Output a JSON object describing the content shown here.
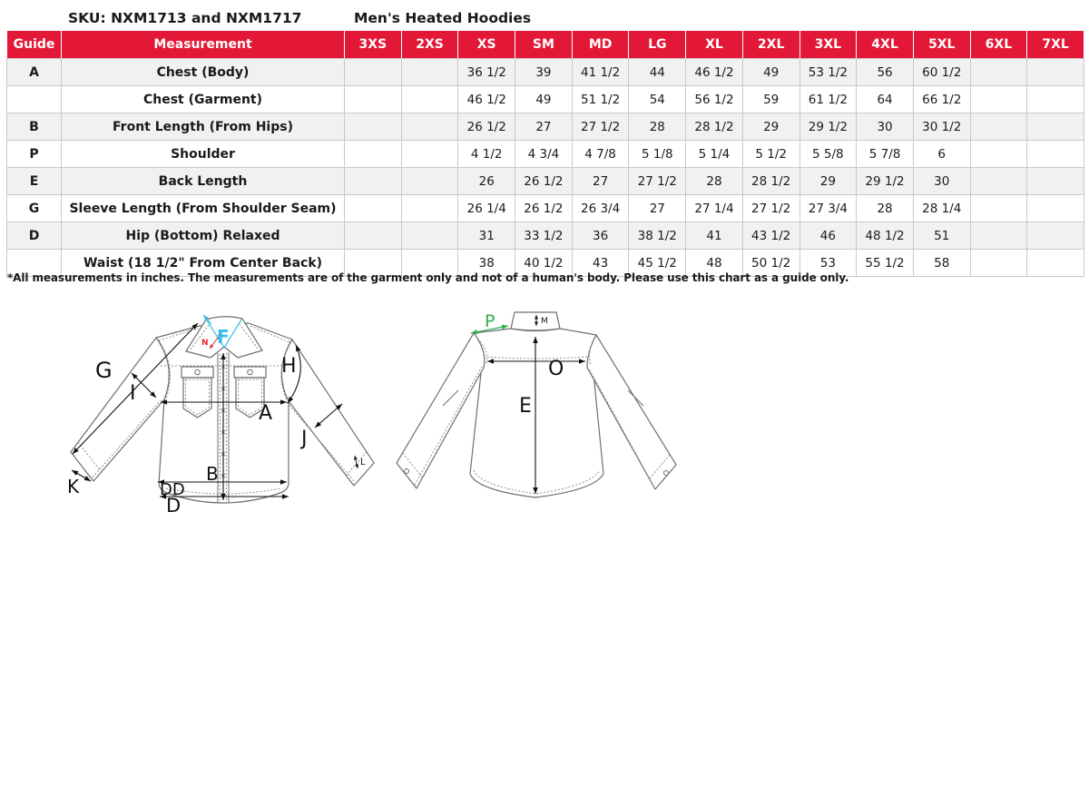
{
  "header": {
    "sku_title": "SKU: NXM1713 and NXM1717",
    "product_title": "Men's Heated Hoodies"
  },
  "table": {
    "columns": [
      "Guide",
      "Measurement",
      "3XS",
      "2XS",
      "XS",
      "SM",
      "MD",
      "LG",
      "XL",
      "2XL",
      "3XL",
      "4XL",
      "5XL",
      "6XL",
      "7XL"
    ],
    "rows": [
      {
        "guide": "A",
        "measurement": "Chest (Body)",
        "values": [
          "",
          "",
          "36 1/2",
          "39",
          "41 1/2",
          "44",
          "46 1/2",
          "49",
          "53 1/2",
          "56",
          "60 1/2",
          "",
          ""
        ]
      },
      {
        "guide": "",
        "measurement": "Chest (Garment)",
        "values": [
          "",
          "",
          "46 1/2",
          "49",
          "51 1/2",
          "54",
          "56 1/2",
          "59",
          "61 1/2",
          "64",
          "66 1/2",
          "",
          ""
        ]
      },
      {
        "guide": "B",
        "measurement": "Front Length (From Hips)",
        "values": [
          "",
          "",
          "26 1/2",
          "27",
          "27 1/2",
          "28",
          "28 1/2",
          "29",
          "29 1/2",
          "30",
          "30 1/2",
          "",
          ""
        ]
      },
      {
        "guide": "P",
        "measurement": "Shoulder",
        "values": [
          "",
          "",
          "4 1/2",
          "4 3/4",
          "4 7/8",
          "5 1/8",
          "5 1/4",
          "5 1/2",
          "5 5/8",
          "5 7/8",
          "6",
          "",
          ""
        ]
      },
      {
        "guide": "E",
        "measurement": "Back Length",
        "values": [
          "",
          "",
          "26",
          "26 1/2",
          "27",
          "27 1/2",
          "28",
          "28 1/2",
          "29",
          "29 1/2",
          "30",
          "",
          ""
        ]
      },
      {
        "guide": "G",
        "measurement": "Sleeve Length (From Shoulder Seam)",
        "values": [
          "",
          "",
          "26 1/4",
          "26 1/2",
          "26 3/4",
          "27",
          "27 1/4",
          "27 1/2",
          "27 3/4",
          "28",
          "28 1/4",
          "",
          ""
        ]
      },
      {
        "guide": "D",
        "measurement": "Hip (Bottom) Relaxed",
        "values": [
          "",
          "",
          "31",
          "33 1/2",
          "36",
          "38 1/2",
          "41",
          "43 1/2",
          "46",
          "48 1/2",
          "51",
          "",
          ""
        ]
      },
      {
        "guide": "",
        "measurement": "Waist (18 1/2\" From Center Back)",
        "values": [
          "",
          "",
          "38",
          "40 1/2",
          "43",
          "45 1/2",
          "48",
          "50 1/2",
          "53",
          "55 1/2",
          "58",
          "",
          ""
        ]
      }
    ]
  },
  "footnote": "*All measurements in inches. The measurements are of the garment only and not of a human's body. Please use this chart as a guide only.",
  "diagram": {
    "front": {
      "f": "F",
      "n": "N",
      "g": "G",
      "i": "I",
      "h": "H",
      "a": "A",
      "j": "J",
      "b": "B",
      "k": "K",
      "dd": "DD",
      "d": "D",
      "l": "L"
    },
    "back": {
      "p": "P",
      "m": "M",
      "o": "O",
      "e": "E"
    }
  },
  "colors": {
    "header_bg": "#E31837",
    "header_text": "#FFFFFF",
    "row_alt": "#F1F1F2",
    "grid": "#C9C9C9",
    "cyan_label": "#35BCEC",
    "green_label": "#2EAD4E",
    "red_label": "#E8232B"
  }
}
